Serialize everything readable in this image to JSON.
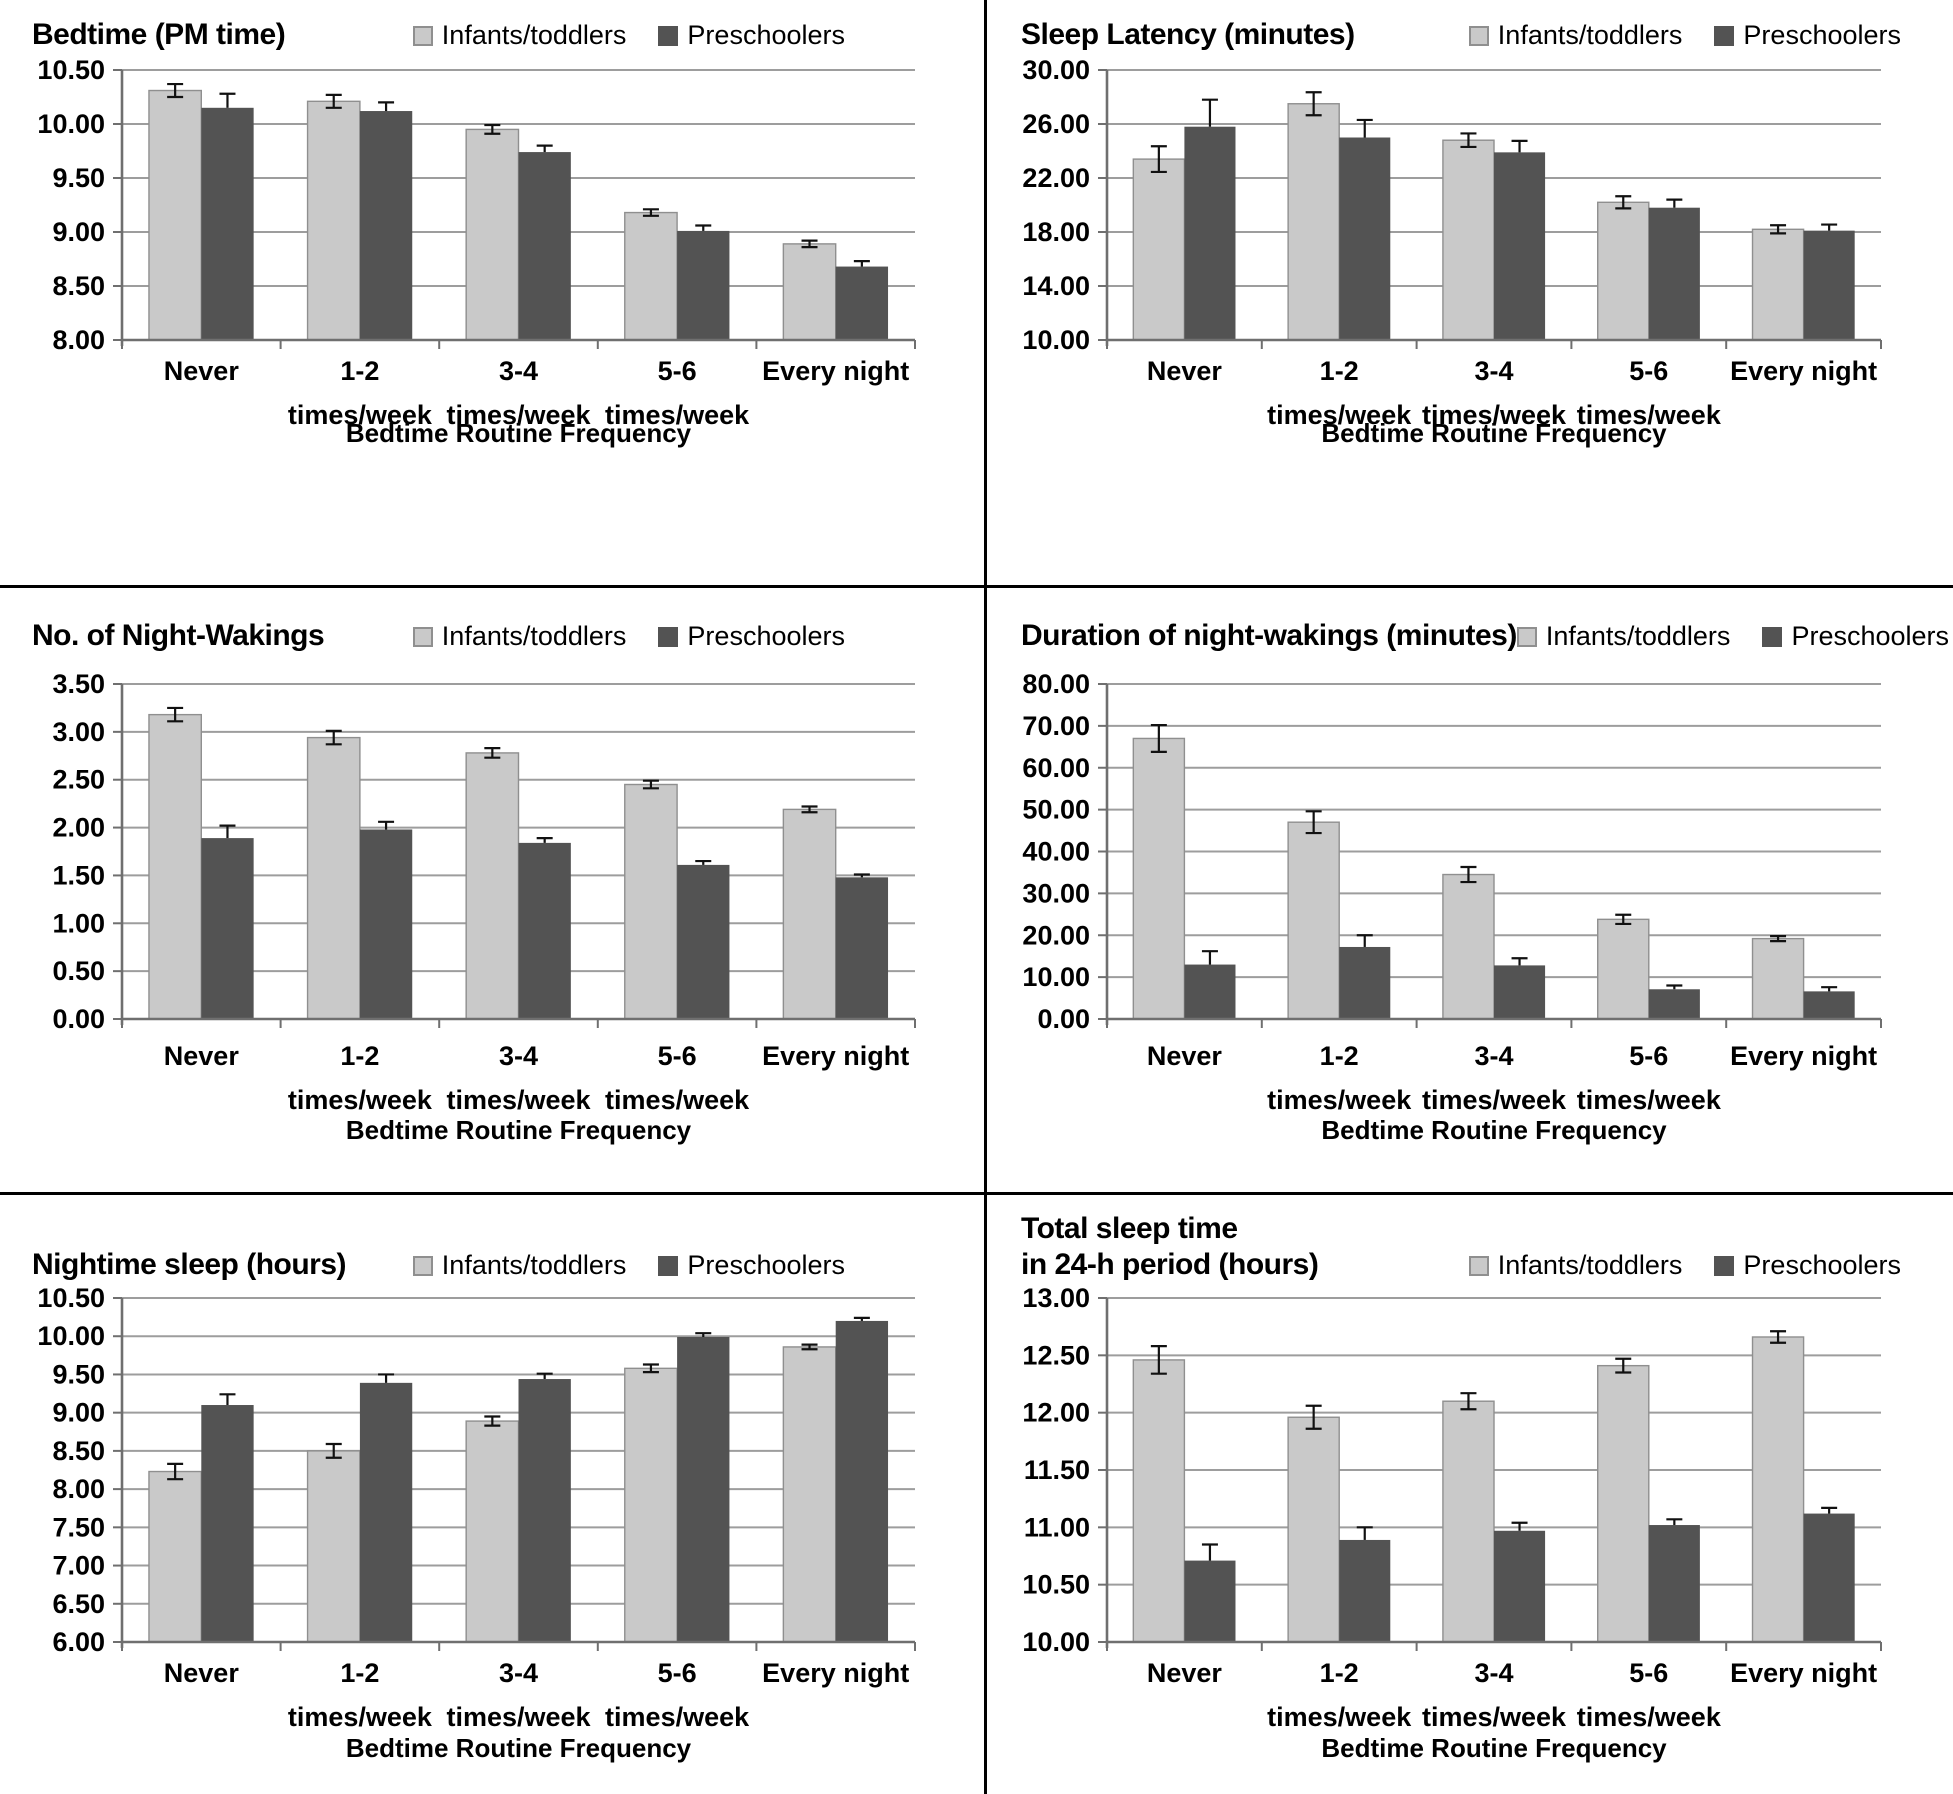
{
  "chart_data": {
    "type": "bar",
    "categories": [
      "Never",
      "1-2 times/week",
      "3-4 times/week",
      "5-6 times/week",
      "Every night"
    ],
    "category_lines": [
      [
        "Never"
      ],
      [
        "1-2",
        "times/week"
      ],
      [
        "3-4",
        "times/week"
      ],
      [
        "5-6",
        "times/week"
      ],
      [
        "Every night"
      ]
    ],
    "xlabel": "Bedtime Routine Frequency",
    "series_names": [
      "Infants/toddlers",
      "Preschoolers"
    ],
    "legend_position": "top-right",
    "grid": true,
    "colors": {
      "infants_fill": "#c9c9c9",
      "infants_stroke": "#8f8f8f",
      "preschoolers_fill": "#535353",
      "preschoolers_stroke": "#3a3a3a",
      "gridline": "#9d9d9d",
      "axis": "#6f6f6f",
      "error_bar": "#111111",
      "divider": "#000000",
      "background": "#ffffff"
    },
    "panels": [
      {
        "id": "bedtime",
        "title": "Bedtime (PM time)",
        "title_lines": [
          "Bedtime (PM time)"
        ],
        "ylim": [
          8.0,
          10.5
        ],
        "ystep": 0.5,
        "ydecimals": 2,
        "series": [
          {
            "name": "Infants/toddlers",
            "values": [
              10.31,
              10.21,
              9.95,
              9.18,
              8.89
            ],
            "errors": [
              0.06,
              0.06,
              0.04,
              0.03,
              0.03
            ]
          },
          {
            "name": "Preschoolers",
            "values": [
              10.15,
              10.12,
              9.74,
              9.01,
              8.68
            ],
            "errors": [
              0.13,
              0.08,
              0.06,
              0.05,
              0.05
            ]
          }
        ]
      },
      {
        "id": "sleep-latency",
        "title": "Sleep Latency (minutes)",
        "title_lines": [
          "Sleep Latency (minutes)"
        ],
        "ylim": [
          10.0,
          30.0
        ],
        "ystep": 4.0,
        "ydecimals": 2,
        "series": [
          {
            "name": "Infants/toddlers",
            "values": [
              23.4,
              27.5,
              24.8,
              20.2,
              18.2
            ],
            "errors": [
              0.95,
              0.85,
              0.5,
              0.45,
              0.3
            ]
          },
          {
            "name": "Preschoolers",
            "values": [
              25.8,
              25.0,
              23.9,
              19.8,
              18.1
            ],
            "errors": [
              2.0,
              1.3,
              0.85,
              0.6,
              0.45
            ]
          }
        ]
      },
      {
        "id": "night-wakings",
        "title": "No. of Night-Wakings",
        "title_lines": [
          "No. of Night-Wakings"
        ],
        "ylim": [
          0.0,
          3.5
        ],
        "ystep": 0.5,
        "ydecimals": 2,
        "series": [
          {
            "name": "Infants/toddlers",
            "values": [
              3.18,
              2.94,
              2.78,
              2.45,
              2.19
            ],
            "errors": [
              0.07,
              0.07,
              0.05,
              0.04,
              0.03
            ]
          },
          {
            "name": "Preschoolers",
            "values": [
              1.89,
              1.98,
              1.84,
              1.61,
              1.48
            ],
            "errors": [
              0.13,
              0.08,
              0.05,
              0.04,
              0.03
            ]
          }
        ]
      },
      {
        "id": "duration-night-wakings",
        "title": "Duration of night-wakings (minutes)",
        "title_lines": [
          "Duration of night-wakings (minutes)"
        ],
        "ylim": [
          0.0,
          80.0
        ],
        "ystep": 10.0,
        "ydecimals": 2,
        "series": [
          {
            "name": "Infants/toddlers",
            "values": [
              67.0,
              47.0,
              34.5,
              23.8,
              19.2
            ],
            "errors": [
              3.2,
              2.6,
              1.8,
              1.1,
              0.6
            ]
          },
          {
            "name": "Preschoolers",
            "values": [
              13.0,
              17.2,
              12.8,
              7.1,
              6.6
            ],
            "errors": [
              3.2,
              2.8,
              1.7,
              0.9,
              1.0
            ]
          }
        ]
      },
      {
        "id": "nightime-sleep",
        "title": "Nightime sleep (hours)",
        "title_lines": [
          "Nightime sleep (hours)"
        ],
        "ylim": [
          6.0,
          10.5
        ],
        "ystep": 0.5,
        "ydecimals": 2,
        "series": [
          {
            "name": "Infants/toddlers",
            "values": [
              8.23,
              8.5,
              8.89,
              9.58,
              9.86
            ],
            "errors": [
              0.1,
              0.09,
              0.06,
              0.05,
              0.03
            ]
          },
          {
            "name": "Preschoolers",
            "values": [
              9.1,
              9.39,
              9.44,
              9.99,
              10.2
            ],
            "errors": [
              0.14,
              0.11,
              0.07,
              0.05,
              0.04
            ]
          }
        ]
      },
      {
        "id": "total-sleep-time",
        "title": "Total sleep time in 24-h period (hours)",
        "title_lines": [
          "Total sleep time",
          "in 24-h period (hours)"
        ],
        "ylim": [
          10.0,
          13.0
        ],
        "ystep": 0.5,
        "ydecimals": 2,
        "series": [
          {
            "name": "Infants/toddlers",
            "values": [
              12.46,
              11.96,
              12.1,
              12.41,
              12.66
            ],
            "errors": [
              0.12,
              0.1,
              0.07,
              0.06,
              0.05
            ]
          },
          {
            "name": "Preschoolers",
            "values": [
              10.71,
              10.89,
              10.97,
              11.02,
              11.12
            ],
            "errors": [
              0.14,
              0.11,
              0.07,
              0.05,
              0.05
            ]
          }
        ]
      }
    ]
  }
}
